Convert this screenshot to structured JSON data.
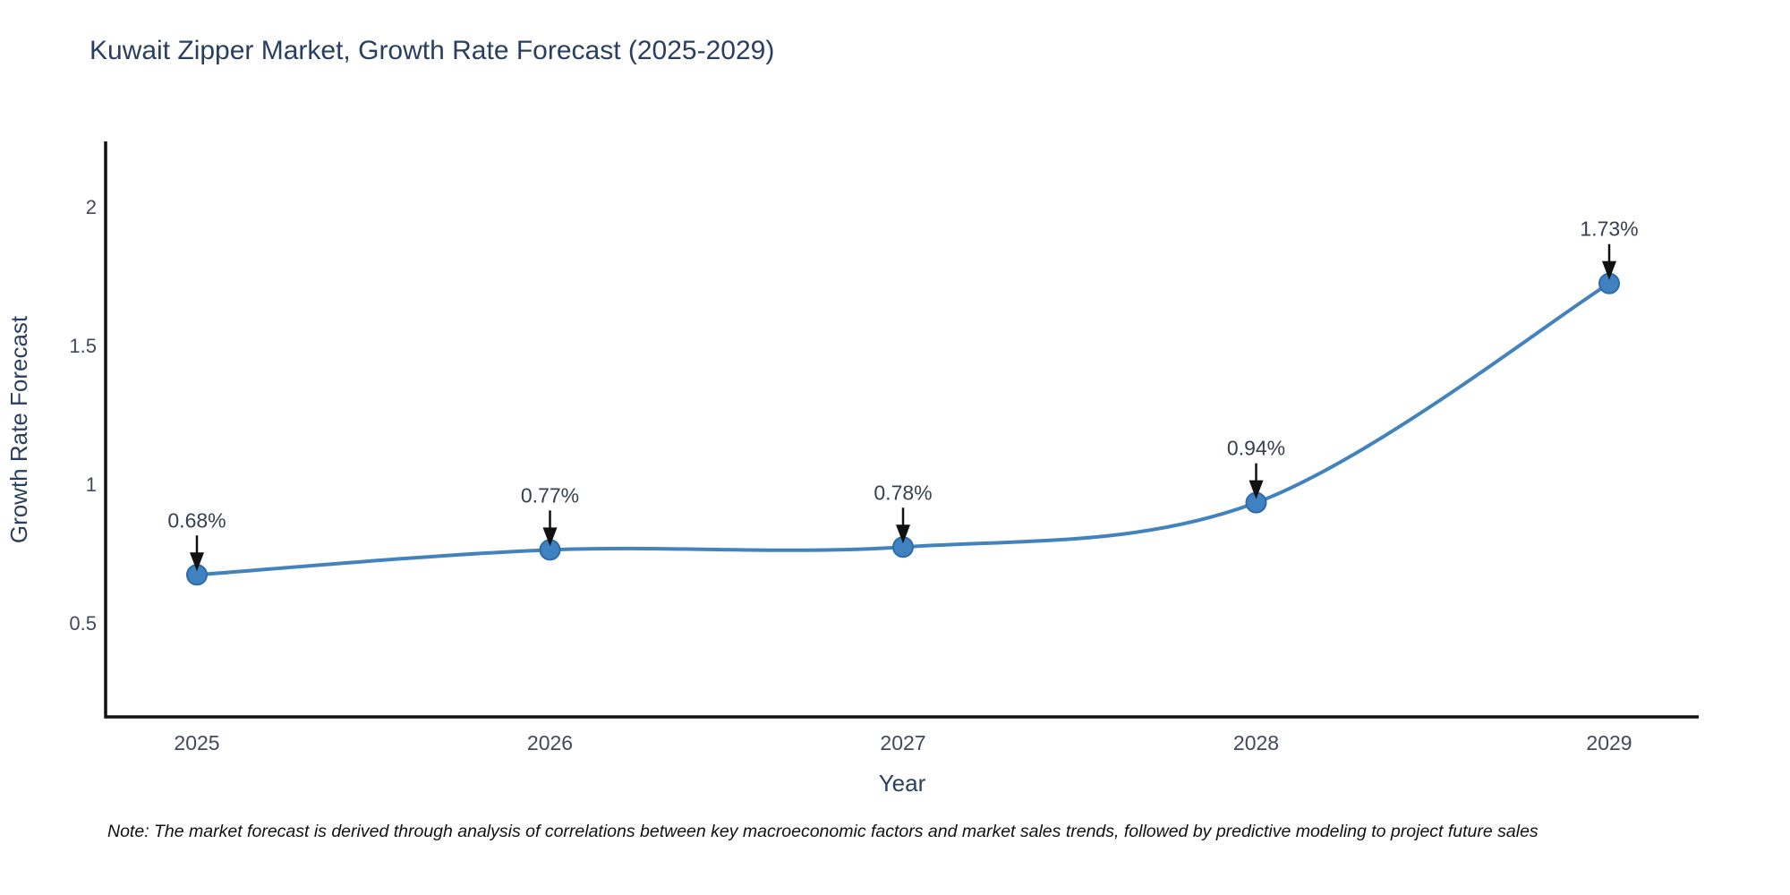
{
  "title": "Kuwait Zipper Market, Growth Rate Forecast (2025-2029)",
  "note": "Note: The market forecast is derived through analysis of correlations between key macroeconomic factors and market sales trends, followed by predictive modeling to project future sales",
  "chart_data": {
    "type": "line",
    "title": "Kuwait Zipper Market, Growth Rate Forecast (2025-2029)",
    "xlabel": "Year",
    "ylabel": "Growth Rate Forecast",
    "categories": [
      "2025",
      "2026",
      "2027",
      "2028",
      "2029"
    ],
    "series": [
      {
        "name": "Growth Rate Forecast",
        "values": [
          0.68,
          0.77,
          0.78,
          0.94,
          1.73
        ]
      }
    ],
    "point_labels": [
      "0.68%",
      "0.77%",
      "0.78%",
      "0.94%",
      "1.73%"
    ],
    "yticks": [
      0.5,
      1,
      1.5,
      2
    ],
    "ylim": [
      0.168,
      2.242
    ],
    "line_shape": "spline",
    "grid": false,
    "legend": "none",
    "colors": {
      "line": "#4383bd",
      "marker_fill": "#3f81c1",
      "marker_edge": "#2d6ca6",
      "arrow": "#111111",
      "axis_line": "#111111",
      "title_text": "#2a3f5f",
      "axis_title_text": "#2a3f5f",
      "tick_text": "#42495b",
      "point_label_text": "#36404e"
    }
  }
}
